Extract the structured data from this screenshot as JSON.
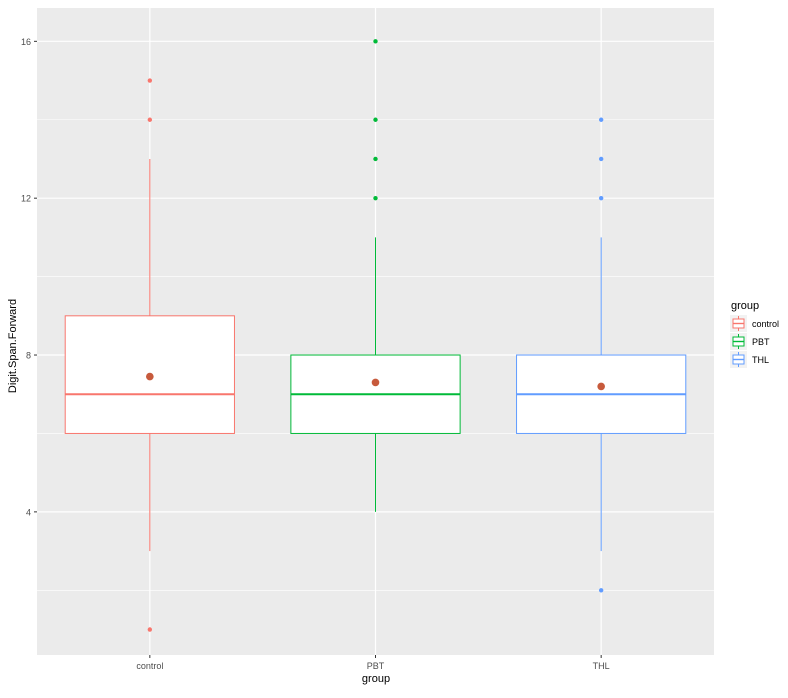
{
  "chart_data": {
    "type": "boxplot",
    "xlabel": "group",
    "ylabel": "Digit.Span.Forward",
    "ylim": [
      0.35,
      16.85
    ],
    "y_ticks": [
      4,
      8,
      12,
      16
    ],
    "y_tick_labels": [
      "4",
      "8",
      "12",
      "16"
    ],
    "grid": true,
    "legend_position": "right",
    "legend_title": "group",
    "categories": [
      "control",
      "PBT",
      "THL"
    ],
    "series": [
      {
        "name": "control",
        "color": "#F8766D",
        "q1": 6,
        "median": 7,
        "q3": 9,
        "whisker_low": 3,
        "whisker_high": 13,
        "mean": 7.45,
        "outliers": [
          1,
          14,
          15
        ]
      },
      {
        "name": "PBT",
        "color": "#00BA38",
        "q1": 6,
        "median": 7,
        "q3": 8,
        "whisker_low": 4,
        "whisker_high": 11,
        "mean": 7.3,
        "outliers": [
          12,
          13,
          14,
          16
        ]
      },
      {
        "name": "THL",
        "color": "#619CFF",
        "q1": 6,
        "median": 7,
        "q3": 8,
        "whisker_low": 3,
        "whisker_high": 11,
        "mean": 7.2,
        "outliers": [
          2,
          12,
          13,
          14
        ]
      }
    ],
    "mean_marker_color": "#C75A3C",
    "panel_background": "#EBEBEB"
  }
}
